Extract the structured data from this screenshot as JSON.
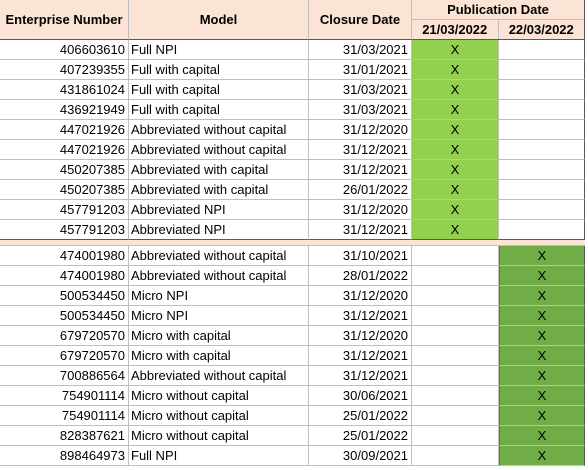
{
  "headers": {
    "enterprise_number": "Enterprise Number",
    "model": "Model",
    "closure_date": "Closure Date",
    "publication_date": "Publication Date",
    "date_1": "21/03/2022",
    "date_2": "22/03/2022"
  },
  "colors": {
    "header_bg": "#fbe4d5",
    "mark_green_light": "#92d050",
    "mark_green_dark": "#70ad47"
  },
  "section1": [
    {
      "enterprise": "406603610",
      "model": "Full NPI",
      "closure": "31/03/2021",
      "pub1": "X",
      "pub2": ""
    },
    {
      "enterprise": "407239355",
      "model": "Full with capital",
      "closure": "31/01/2021",
      "pub1": "X",
      "pub2": ""
    },
    {
      "enterprise": "431861024",
      "model": "Full with capital",
      "closure": "31/03/2021",
      "pub1": "X",
      "pub2": ""
    },
    {
      "enterprise": "436921949",
      "model": "Full with capital",
      "closure": "31/03/2021",
      "pub1": "X",
      "pub2": ""
    },
    {
      "enterprise": "447021926",
      "model": "Abbreviated without capital",
      "closure": "31/12/2020",
      "pub1": "X",
      "pub2": ""
    },
    {
      "enterprise": "447021926",
      "model": "Abbreviated without capital",
      "closure": "31/12/2021",
      "pub1": "X",
      "pub2": ""
    },
    {
      "enterprise": "450207385",
      "model": "Abbreviated with capital",
      "closure": "31/12/2021",
      "pub1": "X",
      "pub2": ""
    },
    {
      "enterprise": "450207385",
      "model": "Abbreviated with capital",
      "closure": "26/01/2022",
      "pub1": "X",
      "pub2": ""
    },
    {
      "enterprise": "457791203",
      "model": "Abbreviated NPI",
      "closure": "31/12/2020",
      "pub1": "X",
      "pub2": ""
    },
    {
      "enterprise": "457791203",
      "model": "Abbreviated NPI",
      "closure": "31/12/2021",
      "pub1": "X",
      "pub2": ""
    }
  ],
  "section2": [
    {
      "enterprise": "474001980",
      "model": "Abbreviated without capital",
      "closure": "31/10/2021",
      "pub1": "",
      "pub2": "X"
    },
    {
      "enterprise": "474001980",
      "model": "Abbreviated without capital",
      "closure": "28/01/2022",
      "pub1": "",
      "pub2": "X"
    },
    {
      "enterprise": "500534450",
      "model": "Micro NPI",
      "closure": "31/12/2020",
      "pub1": "",
      "pub2": "X"
    },
    {
      "enterprise": "500534450",
      "model": "Micro NPI",
      "closure": "31/12/2021",
      "pub1": "",
      "pub2": "X"
    },
    {
      "enterprise": "679720570",
      "model": "Micro with capital",
      "closure": "31/12/2020",
      "pub1": "",
      "pub2": "X"
    },
    {
      "enterprise": "679720570",
      "model": "Micro with capital",
      "closure": "31/12/2021",
      "pub1": "",
      "pub2": "X"
    },
    {
      "enterprise": "700886564",
      "model": "Abbreviated without capital",
      "closure": "31/12/2021",
      "pub1": "",
      "pub2": "X"
    },
    {
      "enterprise": "754901114",
      "model": "Micro without capital",
      "closure": "30/06/2021",
      "pub1": "",
      "pub2": "X"
    },
    {
      "enterprise": "754901114",
      "model": "Micro without capital",
      "closure": "25/01/2022",
      "pub1": "",
      "pub2": "X"
    },
    {
      "enterprise": "828387621",
      "model": "Micro without capital",
      "closure": "25/01/2022",
      "pub1": "",
      "pub2": "X"
    },
    {
      "enterprise": "898464973",
      "model": "Full NPI",
      "closure": "30/09/2021",
      "pub1": "",
      "pub2": "X"
    }
  ]
}
